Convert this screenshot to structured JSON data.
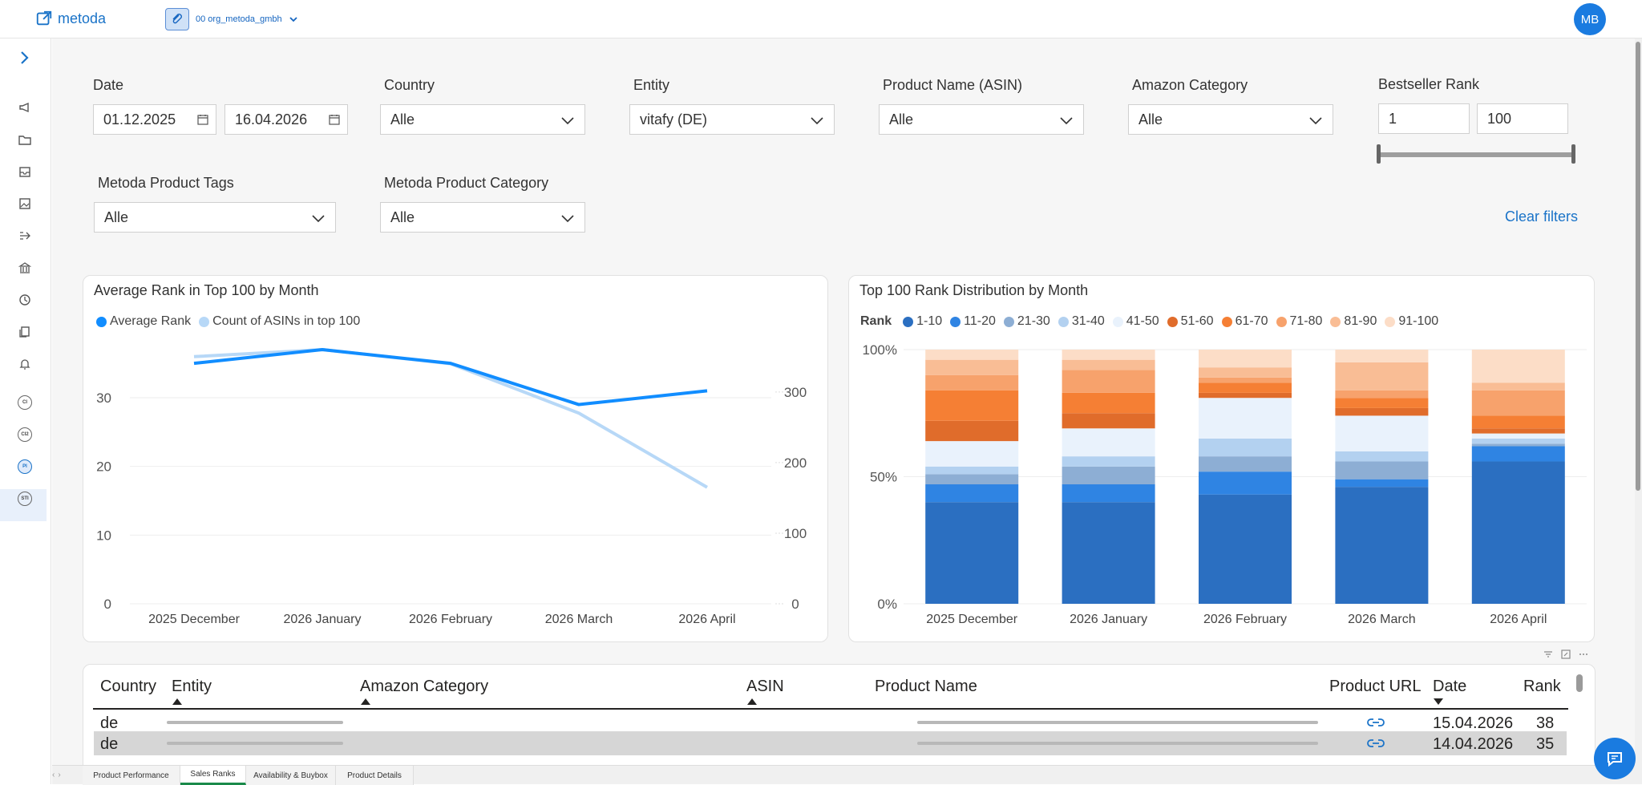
{
  "app": {
    "logo_text": "metoda",
    "org_name": "00 org_metoda_gmbh",
    "avatar_initials": "MB"
  },
  "sidebar": {
    "icons": [
      "megaphone-icon",
      "folder-icon",
      "inbox-icon",
      "image-icon",
      "flow-icon",
      "bank-icon",
      "clock-icon",
      "copy-icon",
      "bell-icon"
    ],
    "badges": [
      "CI",
      "CI2",
      "PI",
      "STI"
    ],
    "active_badge": "PI"
  },
  "filters": {
    "date": {
      "label": "Date",
      "from": "01.12.2025",
      "to": "16.04.2026"
    },
    "country": {
      "label": "Country",
      "value": "Alle"
    },
    "entity": {
      "label": "Entity",
      "value": "vitafy (DE)"
    },
    "product_name": {
      "label": "Product Name (ASIN)",
      "value": "Alle"
    },
    "amazon_category": {
      "label": "Amazon Category",
      "value": "Alle"
    },
    "bestseller_rank": {
      "label": "Bestseller Rank",
      "min": "1",
      "max": "100"
    },
    "product_tags": {
      "label": "Metoda Product Tags",
      "value": "Alle"
    },
    "product_category": {
      "label": "Metoda Product Category",
      "value": "Alle"
    },
    "clear_label": "Clear filters"
  },
  "line_chart": {
    "title": "Average Rank in Top 100 by Month",
    "legend": [
      {
        "name": "Average Rank",
        "color": "#118DFF"
      },
      {
        "name": "Count of ASINs in top 100",
        "color": "#B7D8F7"
      }
    ],
    "left_ticks": [
      "30",
      "20",
      "10",
      "0"
    ],
    "right_ticks": [
      "300",
      "200",
      "100",
      "0"
    ],
    "categories": [
      "2025 December",
      "2026 January",
      "2026 February",
      "2026 March",
      "2026 April"
    ]
  },
  "bar_chart": {
    "title": "Top 100 Rank Distribution by Month",
    "legend_title": "Rank",
    "legend": [
      {
        "name": "1-10",
        "color": "#2B6FC1"
      },
      {
        "name": "11-20",
        "color": "#2F84E3"
      },
      {
        "name": "21-30",
        "color": "#8DAED4"
      },
      {
        "name": "31-40",
        "color": "#B3D1F0"
      },
      {
        "name": "41-50",
        "color": "#E9F2FC"
      },
      {
        "name": "51-60",
        "color": "#E06C2B"
      },
      {
        "name": "61-70",
        "color": "#F57F34"
      },
      {
        "name": "71-80",
        "color": "#F7A26C"
      },
      {
        "name": "81-90",
        "color": "#F9BD95"
      },
      {
        "name": "91-100",
        "color": "#FCDDC7"
      }
    ],
    "y_ticks": [
      "100%",
      "50%",
      "0%"
    ],
    "categories": [
      "2025 December",
      "2026 January",
      "2026 February",
      "2026 March",
      "2026 April"
    ]
  },
  "chart_data": [
    {
      "type": "line",
      "title": "Average Rank in Top 100 by Month",
      "x": [
        "2025 December",
        "2026 January",
        "2026 February",
        "2026 March",
        "2026 April"
      ],
      "series": [
        {
          "name": "Average Rank",
          "axis": "left",
          "values": [
            35,
            37,
            35,
            29,
            31
          ]
        },
        {
          "name": "Count of ASINs in top 100",
          "axis": "right",
          "values": [
            350,
            360,
            340,
            270,
            165
          ]
        }
      ],
      "ylim_left": [
        0,
        37
      ],
      "ylim_right": [
        0,
        360
      ]
    },
    {
      "type": "bar",
      "stacked": true,
      "title": "Top 100 Rank Distribution by Month",
      "categories": [
        "2025 December",
        "2026 January",
        "2026 February",
        "2026 March",
        "2026 April"
      ],
      "series": [
        {
          "name": "1-10",
          "values": [
            40,
            40,
            43,
            46,
            56
          ]
        },
        {
          "name": "11-20",
          "values": [
            7,
            7,
            9,
            3,
            6
          ]
        },
        {
          "name": "21-30",
          "values": [
            4,
            7,
            6,
            7,
            1
          ]
        },
        {
          "name": "31-40",
          "values": [
            3,
            4,
            7,
            4,
            2
          ]
        },
        {
          "name": "41-50",
          "values": [
            10,
            11,
            16,
            14,
            2
          ]
        },
        {
          "name": "51-60",
          "values": [
            8,
            6,
            2,
            3,
            2
          ]
        },
        {
          "name": "61-70",
          "values": [
            12,
            8,
            4,
            4,
            5
          ]
        },
        {
          "name": "71-80",
          "values": [
            6,
            9,
            2,
            3,
            10
          ]
        },
        {
          "name": "81-90",
          "values": [
            6,
            4,
            4,
            11,
            3
          ]
        },
        {
          "name": "91-100",
          "values": [
            4,
            4,
            7,
            5,
            13
          ]
        }
      ],
      "ylim": [
        0,
        100
      ]
    }
  ],
  "table": {
    "columns": [
      "Country",
      "Entity",
      "Amazon Category",
      "ASIN",
      "Product Name",
      "Product URL",
      "Date",
      "Rank"
    ],
    "rows": [
      {
        "country": "de",
        "date": "15.04.2026",
        "rank": "38"
      },
      {
        "country": "de",
        "date": "14.04.2026",
        "rank": "35"
      }
    ]
  },
  "tabs": [
    "Product Performance",
    "Sales Ranks",
    "Availability & Buybox",
    "Product Details"
  ],
  "active_tab": "Sales Ranks"
}
